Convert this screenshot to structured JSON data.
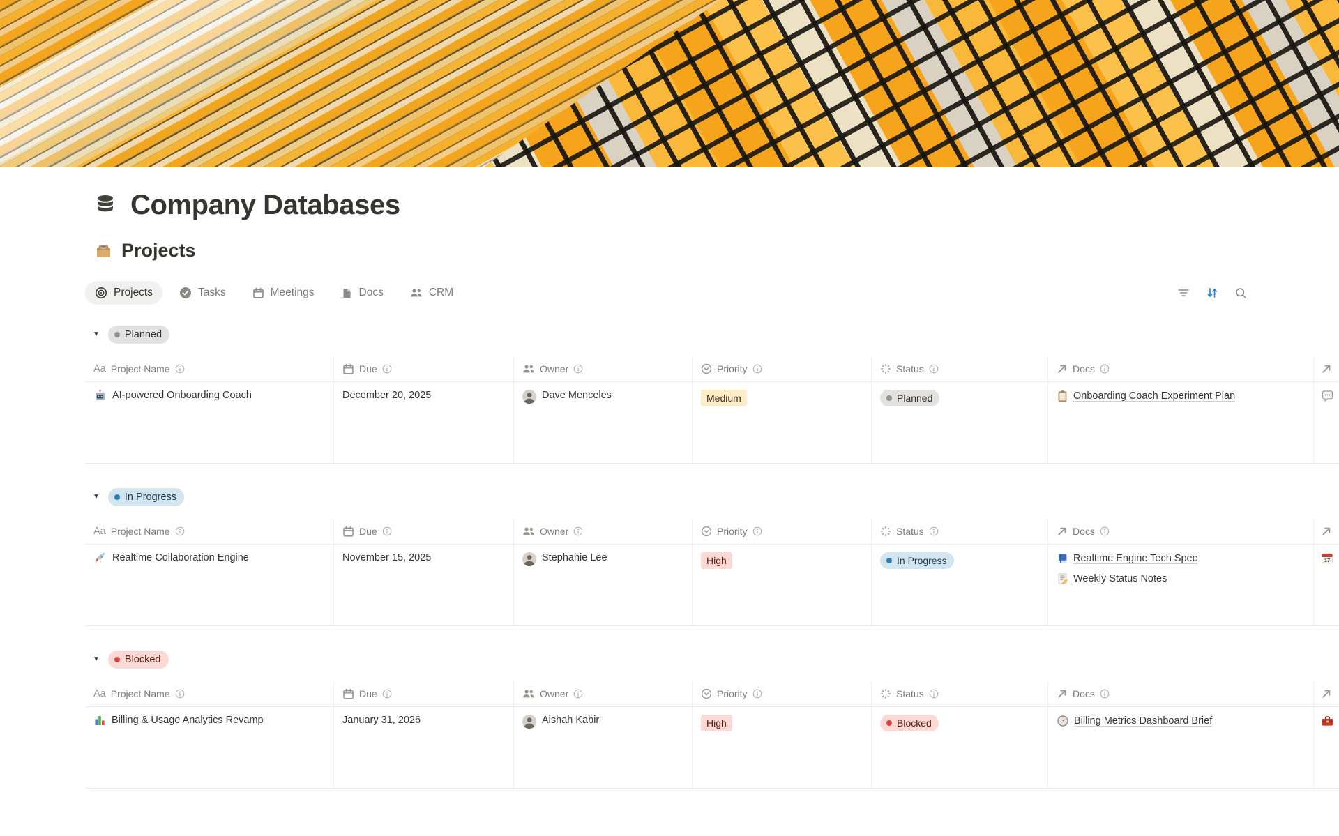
{
  "page": {
    "title": "Company Databases",
    "title_icon": "database-icon",
    "section_title": "Projects",
    "section_icon": "card-box-icon"
  },
  "toolbar": {
    "tabs": [
      {
        "label": "Projects",
        "icon": "target-icon",
        "active": true
      },
      {
        "label": "Tasks",
        "icon": "check-circle-icon",
        "active": false
      },
      {
        "label": "Meetings",
        "icon": "calendar-icon",
        "active": false
      },
      {
        "label": "Docs",
        "icon": "doc-icon",
        "active": false
      },
      {
        "label": "CRM",
        "icon": "people-icon",
        "active": false
      }
    ],
    "actions": [
      {
        "name": "filter",
        "icon": "filter-icon"
      },
      {
        "name": "sort",
        "icon": "sort-icon",
        "active": true
      },
      {
        "name": "search",
        "icon": "search-icon"
      }
    ]
  },
  "columns": {
    "name": "Project Name",
    "due": "Due",
    "owner": "Owner",
    "priority": "Priority",
    "status": "Status",
    "docs": "Docs"
  },
  "groups": [
    {
      "label": "Planned",
      "tone": "gray",
      "rows": [
        {
          "icon": "robot-icon",
          "name": "AI-powered Onboarding Coach",
          "due": "December 20, 2025",
          "owner": "Dave Menceles",
          "priority": "Medium",
          "priority_tone": "yellow",
          "status": "Planned",
          "status_tone": "gray",
          "docs": [
            {
              "icon": "clipboard-icon",
              "title": "Onboarding Coach Experiment Plan"
            }
          ],
          "trailing_icon": "comment-icon"
        }
      ]
    },
    {
      "label": "In Progress",
      "tone": "blue",
      "rows": [
        {
          "icon": "rocket-icon",
          "name": "Realtime Collaboration Engine",
          "due": "November 15, 2025",
          "owner": "Stephanie Lee",
          "priority": "High",
          "priority_tone": "red",
          "status": "In Progress",
          "status_tone": "blue",
          "docs": [
            {
              "icon": "blue-book-icon",
              "title": "Realtime Engine Tech Spec"
            },
            {
              "icon": "memo-icon",
              "title": "Weekly Status Notes"
            }
          ],
          "trailing_icon": "calendar-17-icon",
          "trailing_day": "17"
        }
      ]
    },
    {
      "label": "Blocked",
      "tone": "red",
      "rows": [
        {
          "icon": "bar-chart-icon",
          "name": "Billing & Usage Analytics Revamp",
          "due": "January 31, 2026",
          "owner": "Aishah Kabir",
          "priority": "High",
          "priority_tone": "red",
          "status": "Blocked",
          "status_tone": "red",
          "docs": [
            {
              "icon": "compass-icon",
              "title": "Billing Metrics Dashboard Brief"
            }
          ],
          "trailing_icon": "toolbox-icon"
        }
      ]
    }
  ],
  "colors": {
    "accent_blue": "#2383e2",
    "tag_gray_bg": "#e3e2e0",
    "tag_gray_dot": "#91918e",
    "tag_blue_bg": "#d3e5ef",
    "tag_blue_dot": "#337ea9",
    "tag_red_bg": "#fbd9d4",
    "tag_red_dot": "#d6493f",
    "tag_yellow_bg": "#fdecc8"
  }
}
